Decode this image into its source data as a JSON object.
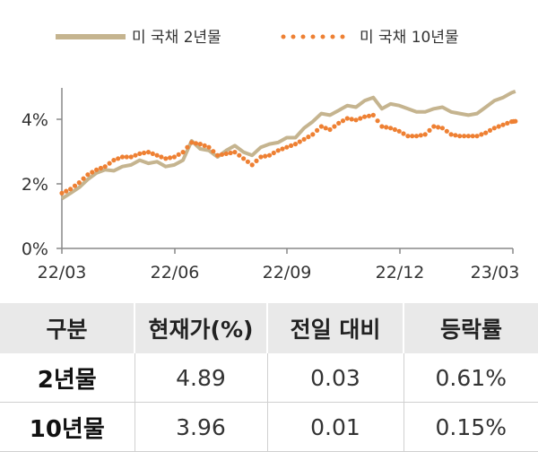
{
  "chart_data": {
    "type": "line",
    "title": "",
    "xlabel": "",
    "ylabel": "",
    "x_ticks": [
      "22/03",
      "22/06",
      "22/09",
      "22/12",
      "23/03"
    ],
    "y_ticks": [
      "0%",
      "2%",
      "4%"
    ],
    "ylim": [
      0,
      5
    ],
    "grid": false,
    "legend_position": "top",
    "series": [
      {
        "name": "미 국채 2년물",
        "style": "solid",
        "color": "#c5b48f",
        "points": [
          [
            "2022-03-01",
            1.55
          ],
          [
            "2022-03-08",
            1.72
          ],
          [
            "2022-03-15",
            1.9
          ],
          [
            "2022-03-22",
            2.15
          ],
          [
            "2022-03-29",
            2.35
          ],
          [
            "2022-04-05",
            2.45
          ],
          [
            "2022-04-12",
            2.42
          ],
          [
            "2022-04-19",
            2.55
          ],
          [
            "2022-04-26",
            2.6
          ],
          [
            "2022-05-03",
            2.75
          ],
          [
            "2022-05-10",
            2.65
          ],
          [
            "2022-05-17",
            2.7
          ],
          [
            "2022-05-24",
            2.55
          ],
          [
            "2022-05-31",
            2.6
          ],
          [
            "2022-06-07",
            2.75
          ],
          [
            "2022-06-14",
            3.35
          ],
          [
            "2022-06-21",
            3.1
          ],
          [
            "2022-06-28",
            3.05
          ],
          [
            "2022-07-05",
            2.85
          ],
          [
            "2022-07-12",
            3.05
          ],
          [
            "2022-07-19",
            3.2
          ],
          [
            "2022-07-26",
            3.0
          ],
          [
            "2022-08-02",
            2.9
          ],
          [
            "2022-08-09",
            3.15
          ],
          [
            "2022-08-16",
            3.25
          ],
          [
            "2022-08-23",
            3.3
          ],
          [
            "2022-08-30",
            3.45
          ],
          [
            "2022-09-06",
            3.45
          ],
          [
            "2022-09-13",
            3.75
          ],
          [
            "2022-09-20",
            3.95
          ],
          [
            "2022-09-27",
            4.2
          ],
          [
            "2022-10-04",
            4.15
          ],
          [
            "2022-10-11",
            4.3
          ],
          [
            "2022-10-18",
            4.45
          ],
          [
            "2022-10-25",
            4.4
          ],
          [
            "2022-11-01",
            4.6
          ],
          [
            "2022-11-08",
            4.7
          ],
          [
            "2022-11-15",
            4.35
          ],
          [
            "2022-11-22",
            4.5
          ],
          [
            "2022-11-29",
            4.45
          ],
          [
            "2022-12-06",
            4.35
          ],
          [
            "2022-12-13",
            4.25
          ],
          [
            "2022-12-20",
            4.25
          ],
          [
            "2022-12-27",
            4.35
          ],
          [
            "2023-01-03",
            4.4
          ],
          [
            "2023-01-10",
            4.25
          ],
          [
            "2023-01-17",
            4.2
          ],
          [
            "2023-01-24",
            4.15
          ],
          [
            "2023-01-31",
            4.2
          ],
          [
            "2023-02-07",
            4.4
          ],
          [
            "2023-02-14",
            4.6
          ],
          [
            "2023-02-21",
            4.7
          ],
          [
            "2023-02-28",
            4.85
          ],
          [
            "2023-03-03",
            4.89
          ]
        ]
      },
      {
        "name": "미 국채 10년물",
        "style": "dotted",
        "color": "#ee8033",
        "points": [
          [
            "2022-03-01",
            1.72
          ],
          [
            "2022-03-08",
            1.85
          ],
          [
            "2022-03-15",
            2.05
          ],
          [
            "2022-03-22",
            2.3
          ],
          [
            "2022-03-29",
            2.45
          ],
          [
            "2022-04-05",
            2.55
          ],
          [
            "2022-04-12",
            2.75
          ],
          [
            "2022-04-19",
            2.85
          ],
          [
            "2022-04-26",
            2.85
          ],
          [
            "2022-05-03",
            2.95
          ],
          [
            "2022-05-10",
            3.0
          ],
          [
            "2022-05-17",
            2.9
          ],
          [
            "2022-05-24",
            2.8
          ],
          [
            "2022-05-31",
            2.85
          ],
          [
            "2022-06-07",
            3.0
          ],
          [
            "2022-06-14",
            3.3
          ],
          [
            "2022-06-21",
            3.25
          ],
          [
            "2022-06-28",
            3.15
          ],
          [
            "2022-07-05",
            2.9
          ],
          [
            "2022-07-12",
            2.95
          ],
          [
            "2022-07-19",
            3.0
          ],
          [
            "2022-07-26",
            2.8
          ],
          [
            "2022-08-02",
            2.6
          ],
          [
            "2022-08-09",
            2.85
          ],
          [
            "2022-08-16",
            2.9
          ],
          [
            "2022-08-23",
            3.05
          ],
          [
            "2022-08-30",
            3.15
          ],
          [
            "2022-09-06",
            3.25
          ],
          [
            "2022-09-13",
            3.4
          ],
          [
            "2022-09-20",
            3.55
          ],
          [
            "2022-09-27",
            3.8
          ],
          [
            "2022-10-04",
            3.7
          ],
          [
            "2022-10-11",
            3.9
          ],
          [
            "2022-10-18",
            4.05
          ],
          [
            "2022-10-25",
            4.0
          ],
          [
            "2022-11-01",
            4.1
          ],
          [
            "2022-11-08",
            4.15
          ],
          [
            "2022-11-15",
            3.8
          ],
          [
            "2022-11-22",
            3.75
          ],
          [
            "2022-11-29",
            3.65
          ],
          [
            "2022-12-06",
            3.5
          ],
          [
            "2022-12-13",
            3.5
          ],
          [
            "2022-12-20",
            3.55
          ],
          [
            "2022-12-27",
            3.8
          ],
          [
            "2023-01-03",
            3.75
          ],
          [
            "2023-01-10",
            3.55
          ],
          [
            "2023-01-17",
            3.5
          ],
          [
            "2023-01-24",
            3.5
          ],
          [
            "2023-01-31",
            3.5
          ],
          [
            "2023-02-07",
            3.6
          ],
          [
            "2023-02-14",
            3.75
          ],
          [
            "2023-02-21",
            3.85
          ],
          [
            "2023-02-28",
            3.95
          ],
          [
            "2023-03-03",
            3.96
          ]
        ]
      }
    ]
  },
  "table": {
    "headers": [
      "구분",
      "현재가(%)",
      "전일 대비",
      "등락률"
    ],
    "rows": [
      [
        "2년물",
        "4.89",
        "0.03",
        "0.61%"
      ],
      [
        "10년물",
        "3.96",
        "0.01",
        "0.15%"
      ]
    ]
  }
}
